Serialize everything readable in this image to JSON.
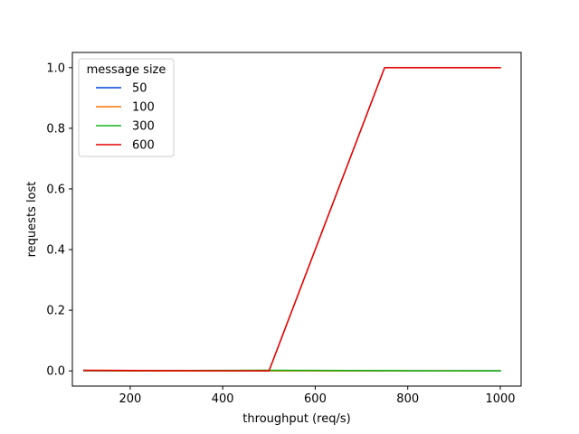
{
  "chart_data": {
    "type": "line",
    "xlabel": "throughput (req/s)",
    "ylabel": "requests lost",
    "xlim": [
      75,
      1045
    ],
    "ylim": [
      -0.05,
      1.05
    ],
    "xticks": [
      200,
      400,
      600,
      800,
      1000
    ],
    "yticks": [
      0.0,
      0.2,
      0.4,
      0.6,
      0.8,
      1.0
    ],
    "xtick_labels": [
      "200",
      "400",
      "600",
      "800",
      "1000"
    ],
    "ytick_labels": [
      "0.0",
      "0.2",
      "0.4",
      "0.6",
      "0.8",
      "1.0"
    ],
    "grid": false,
    "legend": {
      "title": "message size",
      "placement": "top-left"
    },
    "series": [
      {
        "name": "50",
        "color": "#0343df",
        "x": [
          100,
          250,
          500,
          750,
          1000
        ],
        "y": [
          0.001,
          0.0,
          0.0,
          0.0,
          0.0
        ]
      },
      {
        "name": "100",
        "color": "#f97306",
        "x": [
          100,
          250,
          500,
          750,
          1000
        ],
        "y": [
          0.001,
          0.0,
          0.0,
          0.0,
          0.0
        ]
      },
      {
        "name": "300",
        "color": "#15b01a",
        "x": [
          100,
          250,
          500,
          750,
          1000
        ],
        "y": [
          0.001,
          0.001,
          0.002,
          0.001,
          0.0
        ]
      },
      {
        "name": "600",
        "color": "#e50000",
        "x": [
          100,
          250,
          500,
          750,
          1000
        ],
        "y": [
          0.002,
          0.001,
          0.0,
          1.0,
          1.0
        ]
      }
    ]
  }
}
